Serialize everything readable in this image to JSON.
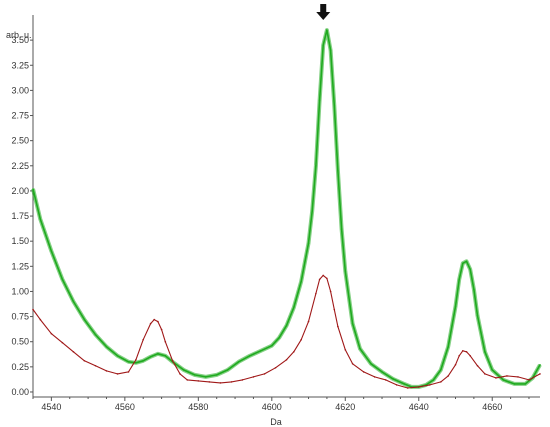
{
  "chart_data": {
    "type": "line",
    "title": "",
    "xlabel": "Da",
    "ylabel": "arb. u.",
    "xlim": [
      4535,
      4673
    ],
    "ylim": [
      -0.05,
      3.75
    ],
    "xticks": [
      4540,
      4560,
      4580,
      4600,
      4620,
      4640,
      4660
    ],
    "yticks": [
      0.0,
      0.25,
      0.5,
      0.75,
      1.0,
      1.25,
      1.5,
      1.75,
      2.0,
      2.25,
      2.5,
      2.75,
      3.0,
      3.25,
      3.5
    ],
    "ytick_labels": [
      "0.00",
      "0.25",
      "0.50",
      "0.75",
      "1.00",
      "1.25",
      "1.50",
      "1.75",
      "2.00",
      "2.25",
      "2.50",
      "2.75",
      "3.00",
      "3.25",
      "3.50"
    ],
    "grid": false,
    "legend": "none",
    "annotations": [
      {
        "type": "arrow-down",
        "x": 4614,
        "y": 3.72
      }
    ],
    "series": [
      {
        "color": "#1faa1f",
        "x": [
          4535,
          4537,
          4540,
          4543,
          4546,
          4549,
          4552,
          4555,
          4558,
          4561,
          4563,
          4565,
          4567,
          4569,
          4571,
          4573,
          4576,
          4579,
          4582,
          4585,
          4588,
          4591,
          4594,
          4597,
          4600,
          4602,
          4604,
          4606,
          4608,
          4610,
          4611,
          4612,
          4613,
          4614,
          4615,
          4616,
          4617,
          4618,
          4619,
          4620,
          4622,
          4624,
          4627,
          4630,
          4633,
          4636,
          4638,
          4640,
          4642,
          4644,
          4646,
          4648,
          4650,
          4651,
          4652,
          4653,
          4654,
          4655,
          4656,
          4658,
          4660,
          4663,
          4666,
          4669,
          4671,
          4673
        ],
        "y": [
          2.02,
          1.72,
          1.4,
          1.12,
          0.9,
          0.72,
          0.57,
          0.45,
          0.36,
          0.3,
          0.29,
          0.31,
          0.35,
          0.38,
          0.36,
          0.3,
          0.22,
          0.17,
          0.15,
          0.17,
          0.22,
          0.3,
          0.36,
          0.41,
          0.46,
          0.54,
          0.66,
          0.84,
          1.1,
          1.48,
          1.8,
          2.25,
          2.9,
          3.45,
          3.6,
          3.4,
          2.85,
          2.2,
          1.62,
          1.2,
          0.68,
          0.43,
          0.28,
          0.2,
          0.13,
          0.08,
          0.05,
          0.05,
          0.07,
          0.12,
          0.22,
          0.45,
          0.85,
          1.12,
          1.28,
          1.3,
          1.22,
          1.02,
          0.76,
          0.4,
          0.22,
          0.12,
          0.08,
          0.08,
          0.14,
          0.27
        ]
      },
      {
        "color": "#a01818",
        "x": [
          4535,
          4537,
          4540,
          4543,
          4546,
          4549,
          4552,
          4555,
          4558,
          4561,
          4563,
          4565,
          4567,
          4568,
          4569,
          4570,
          4571,
          4573,
          4575,
          4577,
          4580,
          4583,
          4586,
          4589,
          4592,
          4595,
          4598,
          4601,
          4604,
          4606,
          4608,
          4610,
          4612,
          4613,
          4614,
          4615,
          4616,
          4617,
          4618,
          4620,
          4622,
          4625,
          4628,
          4631,
          4634,
          4637,
          4640,
          4643,
          4646,
          4648,
          4650,
          4651,
          4652,
          4653,
          4654,
          4656,
          4658,
          4661,
          4664,
          4667,
          4670,
          4673
        ],
        "y": [
          0.82,
          0.72,
          0.58,
          0.49,
          0.4,
          0.31,
          0.26,
          0.21,
          0.18,
          0.2,
          0.32,
          0.52,
          0.68,
          0.72,
          0.7,
          0.62,
          0.5,
          0.31,
          0.18,
          0.12,
          0.11,
          0.1,
          0.09,
          0.1,
          0.12,
          0.15,
          0.18,
          0.24,
          0.32,
          0.4,
          0.52,
          0.7,
          0.98,
          1.12,
          1.16,
          1.13,
          1.0,
          0.82,
          0.65,
          0.42,
          0.28,
          0.2,
          0.15,
          0.12,
          0.07,
          0.04,
          0.05,
          0.07,
          0.1,
          0.16,
          0.27,
          0.36,
          0.41,
          0.4,
          0.36,
          0.26,
          0.18,
          0.14,
          0.16,
          0.15,
          0.12,
          0.18
        ]
      }
    ]
  }
}
